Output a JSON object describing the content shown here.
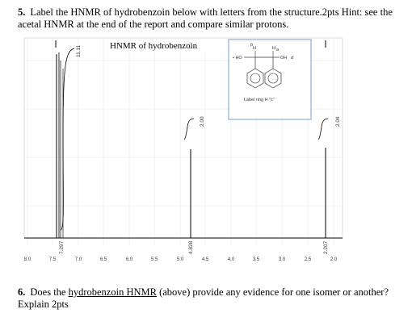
{
  "question5": {
    "number": "5.",
    "text": "Label the HNMR of hydrobenzoin below with letters from the structure.2pts Hint: see the acetal HNMR at the end of the report and compare similar protons."
  },
  "spectrum": {
    "title": "HNMR of hydrobenzoin",
    "axis_ticks": [
      "8.0",
      "7.5",
      "7.0",
      "6.5",
      "6.0",
      "5.5",
      "5.0",
      "4.5",
      "4.0",
      "3.5",
      "3.0",
      "2.5",
      "2.0"
    ],
    "peaks": [
      {
        "shift_label": "7.297",
        "integration": "11.11"
      },
      {
        "shift_label": "4.828",
        "integration": "2.00"
      },
      {
        "shift_label": "2.207",
        "integration": "2.04"
      }
    ]
  },
  "structure": {
    "left_group": "• HO",
    "right_group": "OH",
    "right_group_letter": "d",
    "top_left_h": "H",
    "top_left_sub": "b",
    "top_right_h": "H",
    "top_right_sub": "a",
    "caption": "Label ring H \"c\""
  },
  "question6": {
    "number": "6.",
    "text_before": "Does the ",
    "underlined": "hydrobenzoin HNMR",
    "text_after": " (above) provide any evidence for one isomer or another? Explain 2pts"
  }
}
